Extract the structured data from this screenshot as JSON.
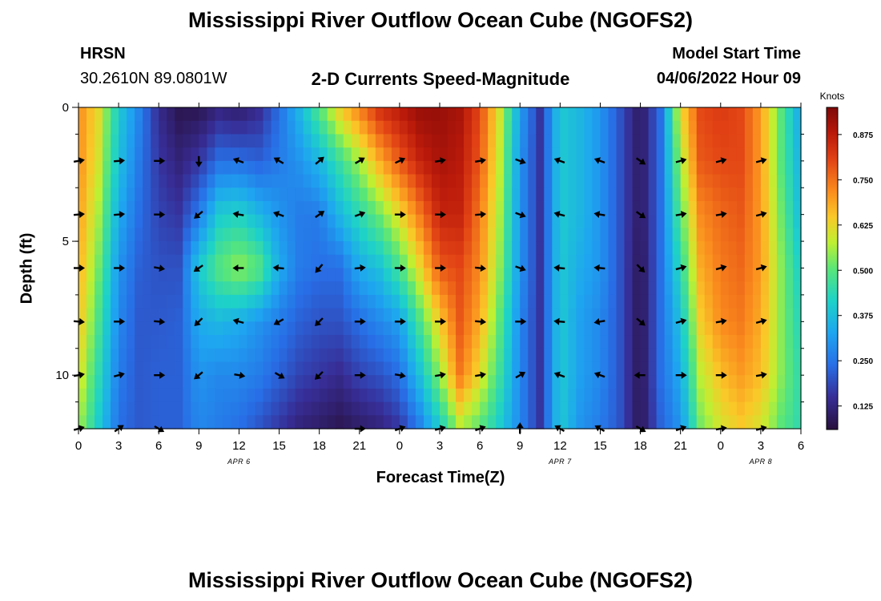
{
  "header": {
    "title": "Mississippi River Outflow Ocean Cube (NGOFS2)",
    "station": "HRSN",
    "coords": "30.2610N  89.0801W",
    "subtitle": "2-D Currents Speed-Magnitude",
    "model_label": "Model Start Time",
    "model_time": "04/06/2022 Hour 09",
    "footer_title": "Mississippi River Outflow Ocean Cube (NGOFS2)"
  },
  "chart_data": {
    "type": "heatmap",
    "title": "2-D Currents Speed-Magnitude",
    "xlabel": "Forecast Time(Z)",
    "ylabel": "Depth (ft)",
    "x_hours": [
      0,
      54
    ],
    "y_depth": [
      0,
      12
    ],
    "x_ticks": [
      {
        "h": 0,
        "label": "0"
      },
      {
        "h": 3,
        "label": "3"
      },
      {
        "h": 6,
        "label": "6"
      },
      {
        "h": 9,
        "label": "9"
      },
      {
        "h": 12,
        "label": "12"
      },
      {
        "h": 15,
        "label": "15"
      },
      {
        "h": 18,
        "label": "18"
      },
      {
        "h": 21,
        "label": "21"
      },
      {
        "h": 24,
        "label": "0"
      },
      {
        "h": 27,
        "label": "3"
      },
      {
        "h": 30,
        "label": "6"
      },
      {
        "h": 33,
        "label": "9"
      },
      {
        "h": 36,
        "label": "12"
      },
      {
        "h": 39,
        "label": "15"
      },
      {
        "h": 42,
        "label": "18"
      },
      {
        "h": 45,
        "label": "21"
      },
      {
        "h": 48,
        "label": "0"
      },
      {
        "h": 51,
        "label": "3"
      },
      {
        "h": 54,
        "label": "6"
      }
    ],
    "date_labels": [
      {
        "h": 12,
        "label": "APR 6"
      },
      {
        "h": 36,
        "label": "APR 7"
      },
      {
        "h": 51,
        "label": "APR 8"
      }
    ],
    "y_ticks": [
      {
        "d": 0,
        "label": "0"
      },
      {
        "d": 5,
        "label": "5"
      },
      {
        "d": 10,
        "label": "10"
      }
    ],
    "colorbar": {
      "label": "Knots",
      "min": 0.06,
      "max": 0.95,
      "ticks": [
        {
          "v": 0.125,
          "label": "0.125"
        },
        {
          "v": 0.25,
          "label": "0.250"
        },
        {
          "v": 0.375,
          "label": "0.375"
        },
        {
          "v": 0.5,
          "label": "0.500"
        },
        {
          "v": 0.625,
          "label": "0.625"
        },
        {
          "v": 0.75,
          "label": "0.750"
        },
        {
          "v": 0.875,
          "label": "0.875"
        }
      ]
    },
    "depth_rows": [
      0,
      2,
      4,
      6,
      8,
      10,
      12
    ],
    "speed_profiles": [
      [
        0.72,
        0.72,
        0.7,
        0.68,
        0.66,
        0.62,
        0.56
      ],
      [
        0.62,
        0.6,
        0.56,
        0.52,
        0.48,
        0.44,
        0.4
      ],
      [
        0.4,
        0.38,
        0.34,
        0.3,
        0.28,
        0.26,
        0.24
      ],
      [
        0.28,
        0.26,
        0.24,
        0.22,
        0.21,
        0.21,
        0.21
      ],
      [
        0.14,
        0.16,
        0.18,
        0.2,
        0.21,
        0.22,
        0.22
      ],
      [
        0.08,
        0.12,
        0.16,
        0.2,
        0.22,
        0.22,
        0.22
      ],
      [
        0.08,
        0.16,
        0.26,
        0.4,
        0.34,
        0.3,
        0.28
      ],
      [
        0.12,
        0.24,
        0.4,
        0.5,
        0.36,
        0.28,
        0.26
      ],
      [
        0.1,
        0.24,
        0.42,
        0.55,
        0.34,
        0.28,
        0.24
      ],
      [
        0.14,
        0.22,
        0.36,
        0.5,
        0.3,
        0.26,
        0.2
      ],
      [
        0.24,
        0.26,
        0.3,
        0.34,
        0.26,
        0.22,
        0.16
      ],
      [
        0.36,
        0.3,
        0.26,
        0.26,
        0.22,
        0.18,
        0.12
      ],
      [
        0.5,
        0.36,
        0.26,
        0.24,
        0.2,
        0.16,
        0.1
      ],
      [
        0.64,
        0.46,
        0.36,
        0.24,
        0.2,
        0.14,
        0.08
      ],
      [
        0.74,
        0.56,
        0.44,
        0.34,
        0.24,
        0.18,
        0.1
      ],
      [
        0.84,
        0.68,
        0.52,
        0.38,
        0.28,
        0.2,
        0.12
      ],
      [
        0.88,
        0.78,
        0.62,
        0.48,
        0.32,
        0.24,
        0.16
      ],
      [
        0.92,
        0.86,
        0.74,
        0.62,
        0.48,
        0.38,
        0.26
      ],
      [
        0.92,
        0.9,
        0.86,
        0.78,
        0.64,
        0.54,
        0.4
      ],
      [
        0.9,
        0.88,
        0.86,
        0.8,
        0.78,
        0.74,
        0.56
      ],
      [
        0.8,
        0.78,
        0.74,
        0.72,
        0.68,
        0.62,
        0.5
      ],
      [
        0.6,
        0.58,
        0.56,
        0.54,
        0.5,
        0.46,
        0.4
      ],
      [
        0.32,
        0.3,
        0.3,
        0.3,
        0.28,
        0.28,
        0.28
      ],
      [
        0.16,
        0.16,
        0.16,
        0.16,
        0.16,
        0.16,
        0.16
      ],
      [
        0.4,
        0.4,
        0.4,
        0.4,
        0.4,
        0.4,
        0.4
      ],
      [
        0.36,
        0.36,
        0.36,
        0.34,
        0.32,
        0.32,
        0.3
      ],
      [
        0.3,
        0.3,
        0.3,
        0.3,
        0.28,
        0.28,
        0.26
      ],
      [
        0.2,
        0.2,
        0.2,
        0.2,
        0.2,
        0.2,
        0.2
      ],
      [
        0.09,
        0.09,
        0.09,
        0.08,
        0.08,
        0.08,
        0.08
      ],
      [
        0.24,
        0.24,
        0.24,
        0.24,
        0.24,
        0.24,
        0.22
      ],
      [
        0.62,
        0.56,
        0.5,
        0.44,
        0.38,
        0.34,
        0.3
      ],
      [
        0.8,
        0.78,
        0.72,
        0.68,
        0.64,
        0.58,
        0.52
      ],
      [
        0.82,
        0.8,
        0.76,
        0.74,
        0.72,
        0.66,
        0.6
      ],
      [
        0.8,
        0.8,
        0.78,
        0.76,
        0.74,
        0.7,
        0.64
      ],
      [
        0.7,
        0.7,
        0.7,
        0.7,
        0.68,
        0.66,
        0.6
      ],
      [
        0.5,
        0.5,
        0.52,
        0.54,
        0.54,
        0.54,
        0.5
      ],
      [
        0.32,
        0.34,
        0.36,
        0.4,
        0.42,
        0.44,
        0.44
      ]
    ],
    "vectors": [
      {
        "h": 0,
        "d": 2,
        "a": 10
      },
      {
        "h": 3,
        "d": 2,
        "a": 5
      },
      {
        "h": 6,
        "d": 2,
        "a": 0
      },
      {
        "h": 9,
        "d": 2,
        "a": -90
      },
      {
        "h": 12,
        "d": 2,
        "a": 160
      },
      {
        "h": 15,
        "d": 2,
        "a": 150
      },
      {
        "h": 18,
        "d": 2,
        "a": 40
      },
      {
        "h": 21,
        "d": 2,
        "a": 30
      },
      {
        "h": 24,
        "d": 2,
        "a": 25
      },
      {
        "h": 27,
        "d": 2,
        "a": 10
      },
      {
        "h": 30,
        "d": 2,
        "a": 10
      },
      {
        "h": 33,
        "d": 2,
        "a": -20
      },
      {
        "h": 36,
        "d": 2,
        "a": 160
      },
      {
        "h": 39,
        "d": 2,
        "a": 160
      },
      {
        "h": 42,
        "d": 2,
        "a": -35
      },
      {
        "h": 45,
        "d": 2,
        "a": 15
      },
      {
        "h": 48,
        "d": 2,
        "a": 15
      },
      {
        "h": 51,
        "d": 2,
        "a": 15
      },
      {
        "h": 0,
        "d": 4,
        "a": 5
      },
      {
        "h": 3,
        "d": 4,
        "a": 5
      },
      {
        "h": 6,
        "d": 4,
        "a": 0
      },
      {
        "h": 9,
        "d": 4,
        "a": -140
      },
      {
        "h": 12,
        "d": 4,
        "a": 170
      },
      {
        "h": 15,
        "d": 4,
        "a": 160
      },
      {
        "h": 18,
        "d": 4,
        "a": 35
      },
      {
        "h": 21,
        "d": 4,
        "a": 20
      },
      {
        "h": 24,
        "d": 4,
        "a": 0
      },
      {
        "h": 27,
        "d": 4,
        "a": 0
      },
      {
        "h": 30,
        "d": 4,
        "a": 5
      },
      {
        "h": 33,
        "d": 4,
        "a": -20
      },
      {
        "h": 36,
        "d": 4,
        "a": 165
      },
      {
        "h": 39,
        "d": 4,
        "a": 170
      },
      {
        "h": 42,
        "d": 4,
        "a": -35
      },
      {
        "h": 45,
        "d": 4,
        "a": 10
      },
      {
        "h": 48,
        "d": 4,
        "a": 10
      },
      {
        "h": 51,
        "d": 4,
        "a": 15
      },
      {
        "h": 0,
        "d": 6,
        "a": 0
      },
      {
        "h": 3,
        "d": 6,
        "a": 0
      },
      {
        "h": 6,
        "d": 6,
        "a": -10
      },
      {
        "h": 9,
        "d": 6,
        "a": -145
      },
      {
        "h": 12,
        "d": 6,
        "a": 180
      },
      {
        "h": 15,
        "d": 6,
        "a": 175
      },
      {
        "h": 18,
        "d": 6,
        "a": -130
      },
      {
        "h": 21,
        "d": 6,
        "a": 5
      },
      {
        "h": 24,
        "d": 6,
        "a": 0
      },
      {
        "h": 27,
        "d": 6,
        "a": 0
      },
      {
        "h": 30,
        "d": 6,
        "a": -5
      },
      {
        "h": 33,
        "d": 6,
        "a": -20
      },
      {
        "h": 36,
        "d": 6,
        "a": 175
      },
      {
        "h": 39,
        "d": 6,
        "a": 175
      },
      {
        "h": 42,
        "d": 6,
        "a": -45
      },
      {
        "h": 45,
        "d": 6,
        "a": 15
      },
      {
        "h": 48,
        "d": 6,
        "a": 15
      },
      {
        "h": 51,
        "d": 6,
        "a": 15
      },
      {
        "h": 0,
        "d": 8,
        "a": -5
      },
      {
        "h": 3,
        "d": 8,
        "a": 0
      },
      {
        "h": 6,
        "d": 8,
        "a": -5
      },
      {
        "h": 9,
        "d": 8,
        "a": -135
      },
      {
        "h": 12,
        "d": 8,
        "a": 165
      },
      {
        "h": 15,
        "d": 8,
        "a": -150
      },
      {
        "h": 18,
        "d": 8,
        "a": -135
      },
      {
        "h": 21,
        "d": 8,
        "a": 0
      },
      {
        "h": 24,
        "d": 8,
        "a": 0
      },
      {
        "h": 27,
        "d": 8,
        "a": 0
      },
      {
        "h": 30,
        "d": 8,
        "a": -5
      },
      {
        "h": 33,
        "d": 8,
        "a": 0
      },
      {
        "h": 36,
        "d": 8,
        "a": 175
      },
      {
        "h": 39,
        "d": 8,
        "a": -170
      },
      {
        "h": 42,
        "d": 8,
        "a": -40
      },
      {
        "h": 45,
        "d": 8,
        "a": 15
      },
      {
        "h": 48,
        "d": 8,
        "a": 10
      },
      {
        "h": 51,
        "d": 8,
        "a": 15
      },
      {
        "h": 0,
        "d": 10,
        "a": 10
      },
      {
        "h": 3,
        "d": 10,
        "a": 15
      },
      {
        "h": 6,
        "d": 10,
        "a": 0
      },
      {
        "h": 9,
        "d": 10,
        "a": -140
      },
      {
        "h": 12,
        "d": 10,
        "a": -10
      },
      {
        "h": 15,
        "d": 10,
        "a": -30
      },
      {
        "h": 18,
        "d": 10,
        "a": -135
      },
      {
        "h": 21,
        "d": 10,
        "a": 0
      },
      {
        "h": 24,
        "d": 10,
        "a": -10
      },
      {
        "h": 27,
        "d": 10,
        "a": 10
      },
      {
        "h": 30,
        "d": 10,
        "a": 10
      },
      {
        "h": 33,
        "d": 10,
        "a": 30
      },
      {
        "h": 36,
        "d": 10,
        "a": 160
      },
      {
        "h": 39,
        "d": 10,
        "a": 160
      },
      {
        "h": 42,
        "d": 10,
        "a": 180
      },
      {
        "h": 45,
        "d": 10,
        "a": 0
      },
      {
        "h": 48,
        "d": 10,
        "a": 0
      },
      {
        "h": 51,
        "d": 10,
        "a": 10
      },
      {
        "h": 0,
        "d": 12,
        "a": 15
      },
      {
        "h": 3,
        "d": 12,
        "a": 35
      },
      {
        "h": 6,
        "d": 12,
        "a": -30
      },
      {
        "h": 21,
        "d": 12,
        "a": 0
      },
      {
        "h": 24,
        "d": 12,
        "a": 20
      },
      {
        "h": 27,
        "d": 12,
        "a": 15
      },
      {
        "h": 30,
        "d": 12,
        "a": 20
      },
      {
        "h": 33,
        "d": 12,
        "a": 90
      },
      {
        "h": 36,
        "d": 12,
        "a": 150
      },
      {
        "h": 39,
        "d": 12,
        "a": 150
      },
      {
        "h": 42,
        "d": 12,
        "a": -30
      },
      {
        "h": 45,
        "d": 12,
        "a": 20
      },
      {
        "h": 48,
        "d": 12,
        "a": 10
      },
      {
        "h": 51,
        "d": 12,
        "a": 15
      }
    ]
  }
}
